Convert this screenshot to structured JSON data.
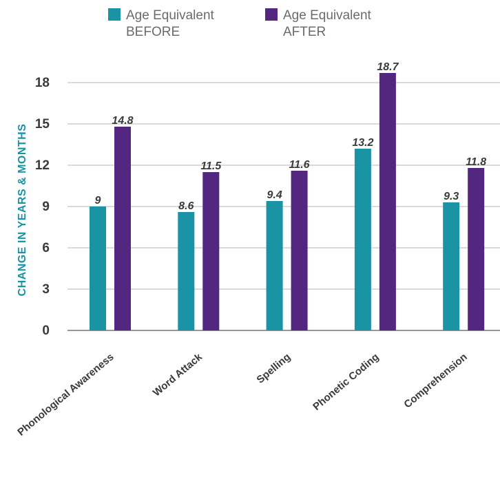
{
  "chart_data": {
    "type": "bar",
    "categories": [
      "Phonological Awareness",
      "Word Attack",
      "Spelling",
      "Phonetic Coding",
      "Comprehension"
    ],
    "series": [
      {
        "name": "Age Equivalent BEFORE",
        "name_lines": [
          "Age Equivalent",
          "BEFORE"
        ],
        "values": [
          9,
          8.6,
          9.4,
          13.2,
          9.3
        ],
        "labels": [
          "9",
          "8.6",
          "9.4",
          "13.2",
          "9.3"
        ],
        "color": "#1a93a4"
      },
      {
        "name": "Age Equivalent AFTER",
        "name_lines": [
          "Age Equivalent",
          "AFTER"
        ],
        "values": [
          14.8,
          11.5,
          11.6,
          18.7,
          11.8
        ],
        "labels": [
          "14.8",
          "11.5",
          "11.6",
          "18.7",
          "11.8"
        ],
        "color": "#53267f"
      }
    ],
    "ylabel": "CHANGE IN YEARS & MONTHS",
    "ylabel_color": "#1a93a4",
    "ylim": [
      0,
      20
    ],
    "yticks": [
      0,
      3,
      6,
      9,
      12,
      15,
      18
    ],
    "grid": true,
    "legend": "top"
  }
}
